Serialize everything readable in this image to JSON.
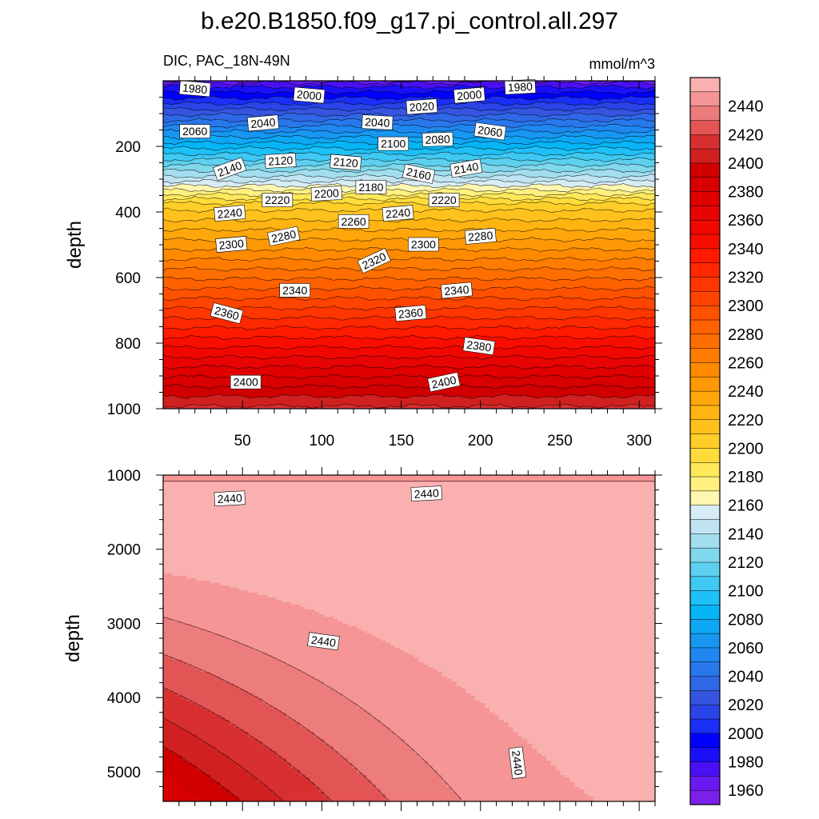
{
  "figure": {
    "title": "b.e20.B1850.f09_g17.pi_control.all.297",
    "left_subtitle": "DIC, PAC_18N-49N",
    "right_subtitle": "mmol/m^3"
  },
  "chart_data": [
    {
      "type": "contour",
      "panel": "upper",
      "variable": "DIC",
      "xlim": [
        0,
        310
      ],
      "ylim": [
        1000,
        0
      ],
      "ylabel": "depth",
      "xticks": [
        50,
        100,
        150,
        200,
        250,
        300
      ],
      "yticks": [
        200,
        400,
        600,
        800,
        1000
      ],
      "contour_labels": [
        {
          "text": "1980",
          "x": 20,
          "y": 25,
          "rot": 5
        },
        {
          "text": "2000",
          "x": 92,
          "y": 45,
          "rot": 5
        },
        {
          "text": "2000",
          "x": 193,
          "y": 45,
          "rot": -5
        },
        {
          "text": "1980",
          "x": 225,
          "y": 20,
          "rot": -3
        },
        {
          "text": "2020",
          "x": 163,
          "y": 80,
          "rot": -4
        },
        {
          "text": "2040",
          "x": 63,
          "y": 130,
          "rot": -5
        },
        {
          "text": "2040",
          "x": 135,
          "y": 128,
          "rot": 3
        },
        {
          "text": "2060",
          "x": 20,
          "y": 155,
          "rot": 0
        },
        {
          "text": "2060",
          "x": 206,
          "y": 155,
          "rot": 8
        },
        {
          "text": "2080",
          "x": 173,
          "y": 180,
          "rot": -2
        },
        {
          "text": "2100",
          "x": 145,
          "y": 193,
          "rot": 0
        },
        {
          "text": "2120",
          "x": 74,
          "y": 245,
          "rot": -3
        },
        {
          "text": "2120",
          "x": 115,
          "y": 250,
          "rot": 5
        },
        {
          "text": "2140",
          "x": 42,
          "y": 270,
          "rot": -20
        },
        {
          "text": "2140",
          "x": 191,
          "y": 268,
          "rot": -10
        },
        {
          "text": "2160",
          "x": 161,
          "y": 285,
          "rot": 12
        },
        {
          "text": "2180",
          "x": 131,
          "y": 325,
          "rot": 0
        },
        {
          "text": "2200",
          "x": 103,
          "y": 345,
          "rot": -3
        },
        {
          "text": "2220",
          "x": 72,
          "y": 365,
          "rot": 0
        },
        {
          "text": "2220",
          "x": 177,
          "y": 365,
          "rot": 0
        },
        {
          "text": "2240",
          "x": 42,
          "y": 405,
          "rot": -5
        },
        {
          "text": "2240",
          "x": 148,
          "y": 405,
          "rot": -5
        },
        {
          "text": "2260",
          "x": 120,
          "y": 430,
          "rot": 0
        },
        {
          "text": "2280",
          "x": 76,
          "y": 475,
          "rot": -12
        },
        {
          "text": "2280",
          "x": 200,
          "y": 475,
          "rot": -5
        },
        {
          "text": "2300",
          "x": 43,
          "y": 500,
          "rot": -5
        },
        {
          "text": "2300",
          "x": 164,
          "y": 500,
          "rot": 0
        },
        {
          "text": "2320",
          "x": 133,
          "y": 550,
          "rot": -25
        },
        {
          "text": "2340",
          "x": 83,
          "y": 640,
          "rot": 0
        },
        {
          "text": "2340",
          "x": 185,
          "y": 640,
          "rot": -5
        },
        {
          "text": "2360",
          "x": 40,
          "y": 710,
          "rot": 15
        },
        {
          "text": "2360",
          "x": 156,
          "y": 710,
          "rot": -5
        },
        {
          "text": "2380",
          "x": 199,
          "y": 810,
          "rot": 8
        },
        {
          "text": "2400",
          "x": 52,
          "y": 920,
          "rot": 0
        },
        {
          "text": "2400",
          "x": 177,
          "y": 920,
          "rot": -12
        }
      ]
    },
    {
      "type": "contour",
      "panel": "lower",
      "variable": "DIC",
      "xlim": [
        0,
        310
      ],
      "ylim": [
        1000,
        5400
      ],
      "ylabel": "depth",
      "yticks": [
        1000,
        2000,
        3000,
        4000,
        5000
      ],
      "contour_labels": [
        {
          "text": "2440",
          "x": 42,
          "y": 1320,
          "rot": -3
        },
        {
          "text": "2440",
          "x": 166,
          "y": 1255,
          "rot": -3
        },
        {
          "text": "2440",
          "x": 101,
          "y": 3245,
          "rot": 8
        },
        {
          "text": "2440",
          "x": 223,
          "y": 4880,
          "rot": 83
        }
      ]
    }
  ],
  "colorbar": {
    "min": 1950,
    "max": 2460,
    "step": 10,
    "labels": [
      "1960",
      "1980",
      "2000",
      "2020",
      "2040",
      "2060",
      "2080",
      "2100",
      "2120",
      "2140",
      "2160",
      "2180",
      "2200",
      "2220",
      "2240",
      "2260",
      "2280",
      "2300",
      "2320",
      "2340",
      "2360",
      "2380",
      "2400",
      "2420",
      "2440"
    ],
    "colors": [
      "#7a20e8",
      "#6a1af0",
      "#4a10f4",
      "#1a10f8",
      "#0000ff",
      "#1a2ef5",
      "#2a44e8",
      "#3555e0",
      "#2f68e6",
      "#2878ec",
      "#1f88f0",
      "#1797f2",
      "#0ea7f4",
      "#05b5f6",
      "#1ec0f5",
      "#3fc8f2",
      "#5ed0ef",
      "#80d8ec",
      "#a2deee",
      "#c0e4f2",
      "#d8ecf6",
      "#fff7b0",
      "#fff080",
      "#ffe85a",
      "#ffdc3c",
      "#ffce28",
      "#ffc21c",
      "#ffb412",
      "#ffa60a",
      "#ff9805",
      "#ff8a00",
      "#ff7c00",
      "#ff6e00",
      "#ff6000",
      "#ff5200",
      "#ff4400",
      "#ff3600",
      "#ff2800",
      "#ff1a00",
      "#f80e00",
      "#f00800",
      "#e80404",
      "#e00000",
      "#d80000",
      "#d00000",
      "#d02020",
      "#d83030",
      "#e35555",
      "#ed7c7c",
      "#f59595",
      "#fbb0b0"
    ]
  }
}
